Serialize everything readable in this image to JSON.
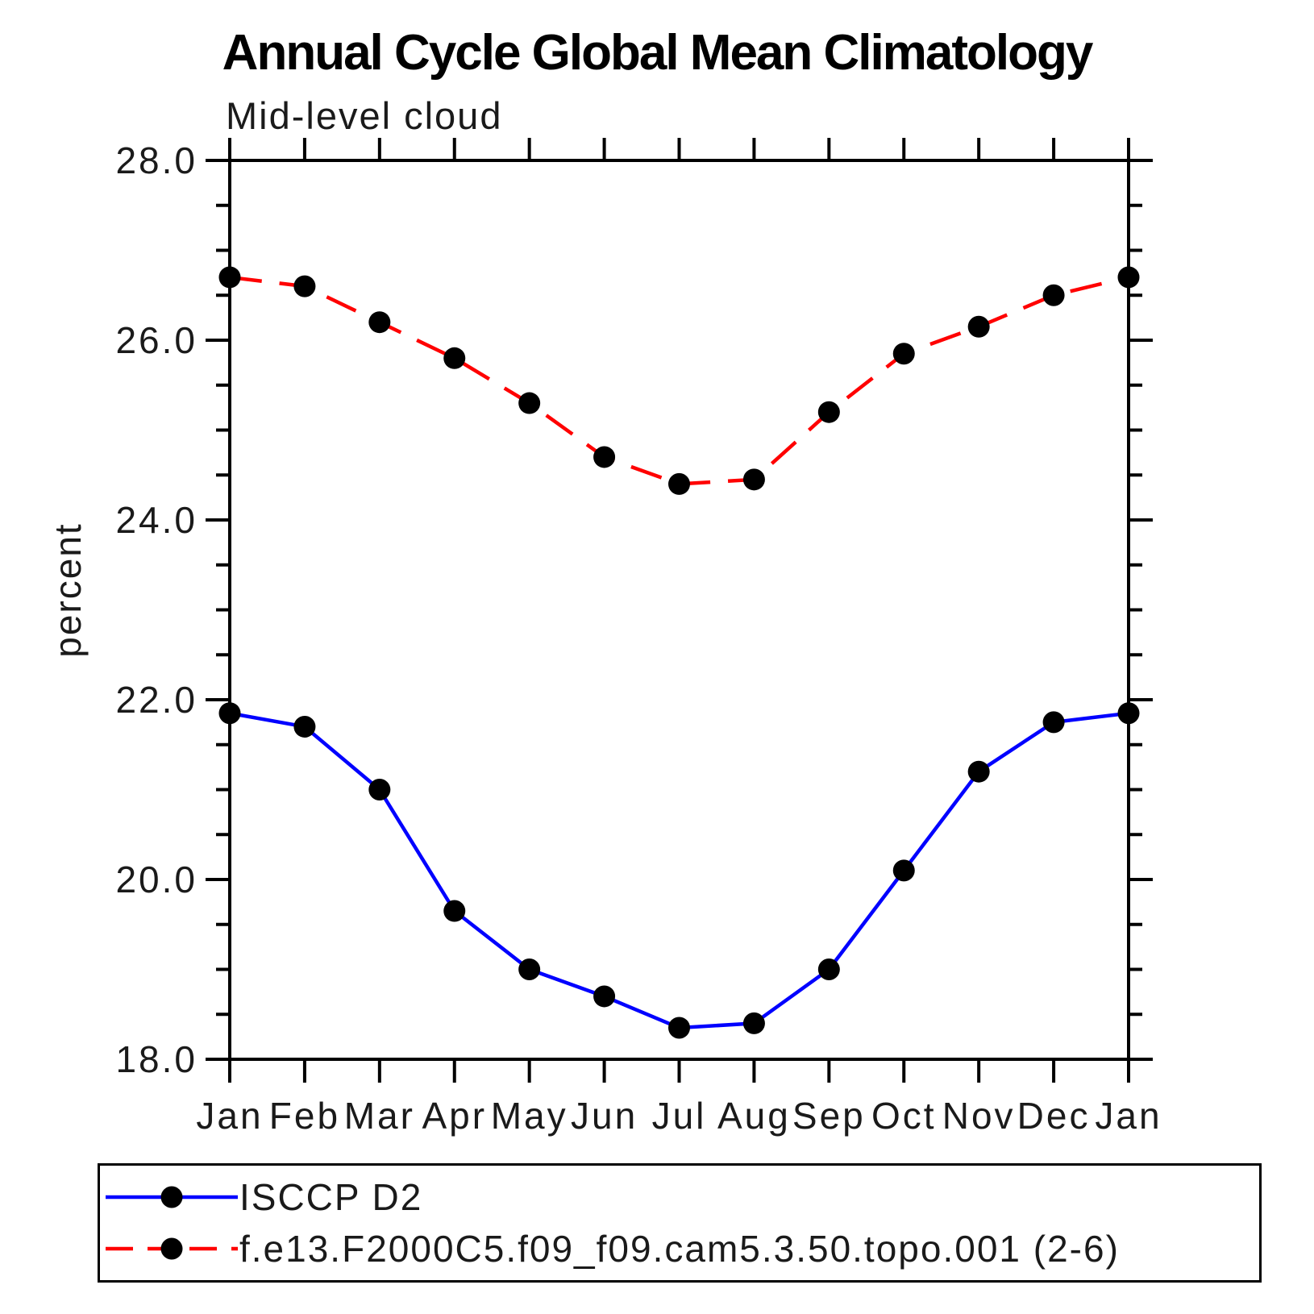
{
  "page": {
    "background": "#ffffff"
  },
  "chart_data": {
    "type": "line",
    "title": "Annual Cycle Global Mean Climatology",
    "subtitle": "Mid-level cloud",
    "ylabel": "percent",
    "ylim": [
      18.0,
      28.0
    ],
    "y_major_step": 2.0,
    "y_minor_step": 0.5,
    "y_tick_labels": [
      "28.0",
      "26.0",
      "24.0",
      "22.0",
      "20.0",
      "18.0"
    ],
    "categories": [
      "Jan",
      "Feb",
      "Mar",
      "Apr",
      "May",
      "Jun",
      "Jul",
      "Aug",
      "Sep",
      "Oct",
      "Nov",
      "Dec",
      "Jan"
    ],
    "grid": false,
    "legend_position": "bottom",
    "axis_color": "#000000",
    "marker": "filled-circle",
    "marker_color": "#000000",
    "series": [
      {
        "name": "ISCCP D2",
        "color": "#0000ff",
        "line_style": "solid",
        "values": [
          21.85,
          21.7,
          21.0,
          19.65,
          19.0,
          18.7,
          18.35,
          18.4,
          19.0,
          20.1,
          21.2,
          21.75,
          21.85
        ]
      },
      {
        "name": "f.e13.F2000C5.f09_f09.cam5.3.50.topo.001 (2-6)",
        "color": "#ff0000",
        "line_style": "dashed",
        "values": [
          26.7,
          26.6,
          26.2,
          25.8,
          25.3,
          24.7,
          24.4,
          24.45,
          25.2,
          25.85,
          26.15,
          26.5,
          26.7
        ]
      }
    ]
  }
}
